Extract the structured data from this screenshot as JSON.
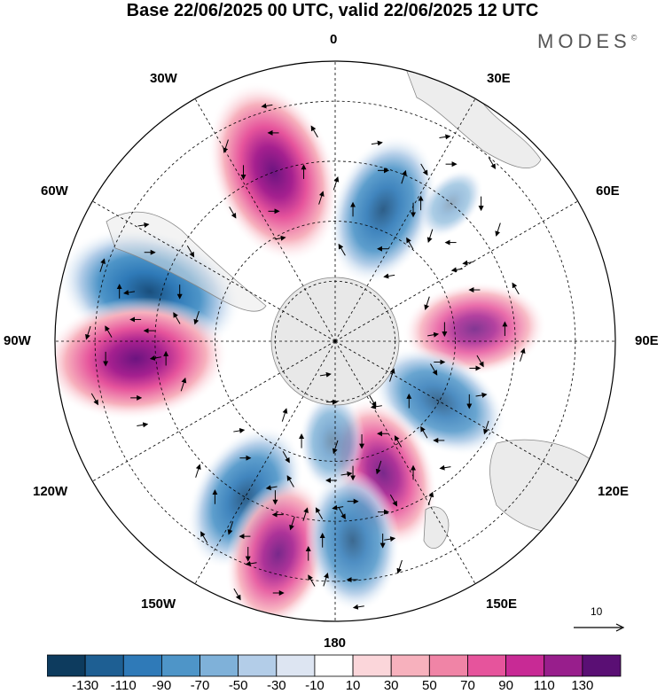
{
  "title": "Base 22/06/2025 00 UTC, valid 22/06/2025 12 UTC",
  "brand": "MODES",
  "brand_mark": "©",
  "longitude_labels": {
    "top": "0",
    "bottom": "180",
    "left": "90W",
    "right": "90E",
    "w30": "30W",
    "e30": "30E",
    "w60": "60W",
    "e60": "60E",
    "w120": "120W",
    "e120": "120E",
    "w150": "150W",
    "e150": "150E"
  },
  "reference_vector": "10",
  "colorbar": {
    "colors": [
      "#0d3b5e",
      "#1e5f93",
      "#2f7ab8",
      "#4e95c8",
      "#7fb1d9",
      "#b3cde8",
      "#dde5f2",
      "#ffffff",
      "#fbd6da",
      "#f7b1bd",
      "#f084a6",
      "#e6549c",
      "#c82a95",
      "#981e8c",
      "#5a0f74"
    ],
    "tick_labels": [
      "-130",
      "-110",
      "-90",
      "-70",
      "-50",
      "-30",
      "-10",
      "10",
      "30",
      "50",
      "70",
      "90",
      "110",
      "130"
    ]
  },
  "anomaly_centers": [
    {
      "lon": -75,
      "lat": -42,
      "value": -120
    },
    {
      "lon": -95,
      "lat": -40,
      "value": 120
    },
    {
      "lon": -150,
      "lat": -45,
      "value": -90
    },
    {
      "lon": -20,
      "lat": -45,
      "value": 120
    },
    {
      "lon": 20,
      "lat": -55,
      "value": -90
    },
    {
      "lon": 85,
      "lat": -55,
      "value": 80
    },
    {
      "lon": 120,
      "lat": -60,
      "value": -80
    },
    {
      "lon": 160,
      "lat": -55,
      "value": 90
    },
    {
      "lon": -165,
      "lat": -35,
      "value": 90
    },
    {
      "lon": 175,
      "lat": -40,
      "value": -80
    },
    {
      "lon": -178,
      "lat": -65,
      "value": -40
    },
    {
      "lon": 40,
      "lat": -45,
      "value": -20
    }
  ]
}
